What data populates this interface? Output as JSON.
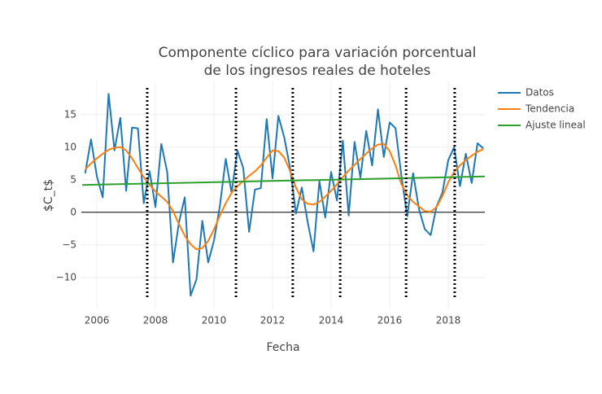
{
  "chart_data": {
    "type": "line",
    "title": [
      "Componente cíclico para variación porcentual",
      "de los ingresos reales de hoteles"
    ],
    "x_label": "Fecha",
    "y_label": "$C_t$",
    "x": [
      2005.6,
      2005.8,
      2006.0,
      2006.2,
      2006.4,
      2006.6,
      2006.8,
      2007.0,
      2007.2,
      2007.4,
      2007.6,
      2007.8,
      2008.0,
      2008.2,
      2008.4,
      2008.6,
      2008.8,
      2009.0,
      2009.2,
      2009.4,
      2009.6,
      2009.8,
      2010.0,
      2010.2,
      2010.4,
      2010.6,
      2010.8,
      2011.0,
      2011.2,
      2011.4,
      2011.6,
      2011.8,
      2012.0,
      2012.2,
      2012.4,
      2012.6,
      2012.8,
      2013.0,
      2013.2,
      2013.4,
      2013.6,
      2013.8,
      2014.0,
      2014.2,
      2014.4,
      2014.6,
      2014.8,
      2015.0,
      2015.2,
      2015.4,
      2015.6,
      2015.8,
      2016.0,
      2016.2,
      2016.4,
      2016.6,
      2016.8,
      2017.0,
      2017.2,
      2017.4,
      2017.6,
      2017.8,
      2018.0,
      2018.2,
      2018.4,
      2018.6,
      2018.8,
      2019.0,
      2019.2
    ],
    "series": [
      {
        "name": "Datos",
        "color": "#1f77b4",
        "values": [
          6.0,
          11.2,
          5.5,
          2.3,
          18.2,
          9.5,
          14.5,
          3.3,
          13.0,
          12.9,
          1.4,
          6.3,
          0.8,
          10.5,
          6.2,
          -7.7,
          -1.6,
          2.3,
          -12.8,
          -10.3,
          -1.3,
          -7.7,
          -4.3,
          1.0,
          8.2,
          3.0,
          9.5,
          6.8,
          -3.0,
          3.5,
          3.7,
          14.3,
          5.2,
          14.8,
          11.5,
          6.8,
          -0.2,
          3.8,
          -1.5,
          -6.0,
          4.8,
          -0.8,
          6.2,
          1.8,
          11.0,
          -0.5,
          10.8,
          5.3,
          12.5,
          7.2,
          15.8,
          8.5,
          13.8,
          12.9,
          5.6,
          -0.6,
          6.0,
          0.5,
          -2.6,
          -3.5,
          0.9,
          3.0,
          8.0,
          10.0,
          4.0,
          9.0,
          4.5,
          10.6,
          9.8
        ]
      },
      {
        "name": "Tendencia",
        "color": "#ff7f0e",
        "values": [
          6.6,
          7.5,
          8.3,
          9.0,
          9.6,
          9.9,
          10.0,
          9.5,
          8.3,
          6.8,
          5.4,
          4.2,
          3.2,
          2.4,
          1.6,
          0.2,
          -1.8,
          -3.6,
          -4.9,
          -5.7,
          -5.5,
          -4.4,
          -2.6,
          -0.5,
          1.4,
          3.0,
          4.0,
          4.8,
          5.6,
          6.3,
          7.2,
          8.4,
          9.5,
          9.4,
          8.4,
          6.3,
          3.8,
          2.0,
          1.3,
          1.2,
          1.6,
          2.4,
          3.3,
          4.3,
          5.4,
          6.4,
          7.3,
          8.2,
          9.0,
          9.8,
          10.4,
          10.5,
          9.4,
          7.2,
          4.3,
          2.6,
          1.6,
          0.9,
          0.2,
          0.1,
          0.8,
          2.5,
          4.6,
          6.2,
          7.2,
          8.0,
          8.7,
          9.3,
          9.7
        ]
      },
      {
        "name": "Ajuste lineal",
        "color": "#2ca02c",
        "x": [
          2005.5,
          2019.25
        ],
        "values": [
          4.2,
          5.5
        ]
      }
    ],
    "vlines": [
      2007.72,
      2010.75,
      2012.69,
      2014.31,
      2016.56,
      2018.22
    ],
    "xlim": [
      2005.47,
      2019.25
    ],
    "ylim": [
      -14.9,
      20.1
    ],
    "xticks": [
      2006,
      2008,
      2010,
      2012,
      2014,
      2016,
      2018
    ],
    "yticks": [
      {
        "value": -10,
        "label": "−10"
      },
      {
        "value": -5,
        "label": "−5"
      },
      0,
      5,
      10,
      15
    ],
    "grid": true
  }
}
